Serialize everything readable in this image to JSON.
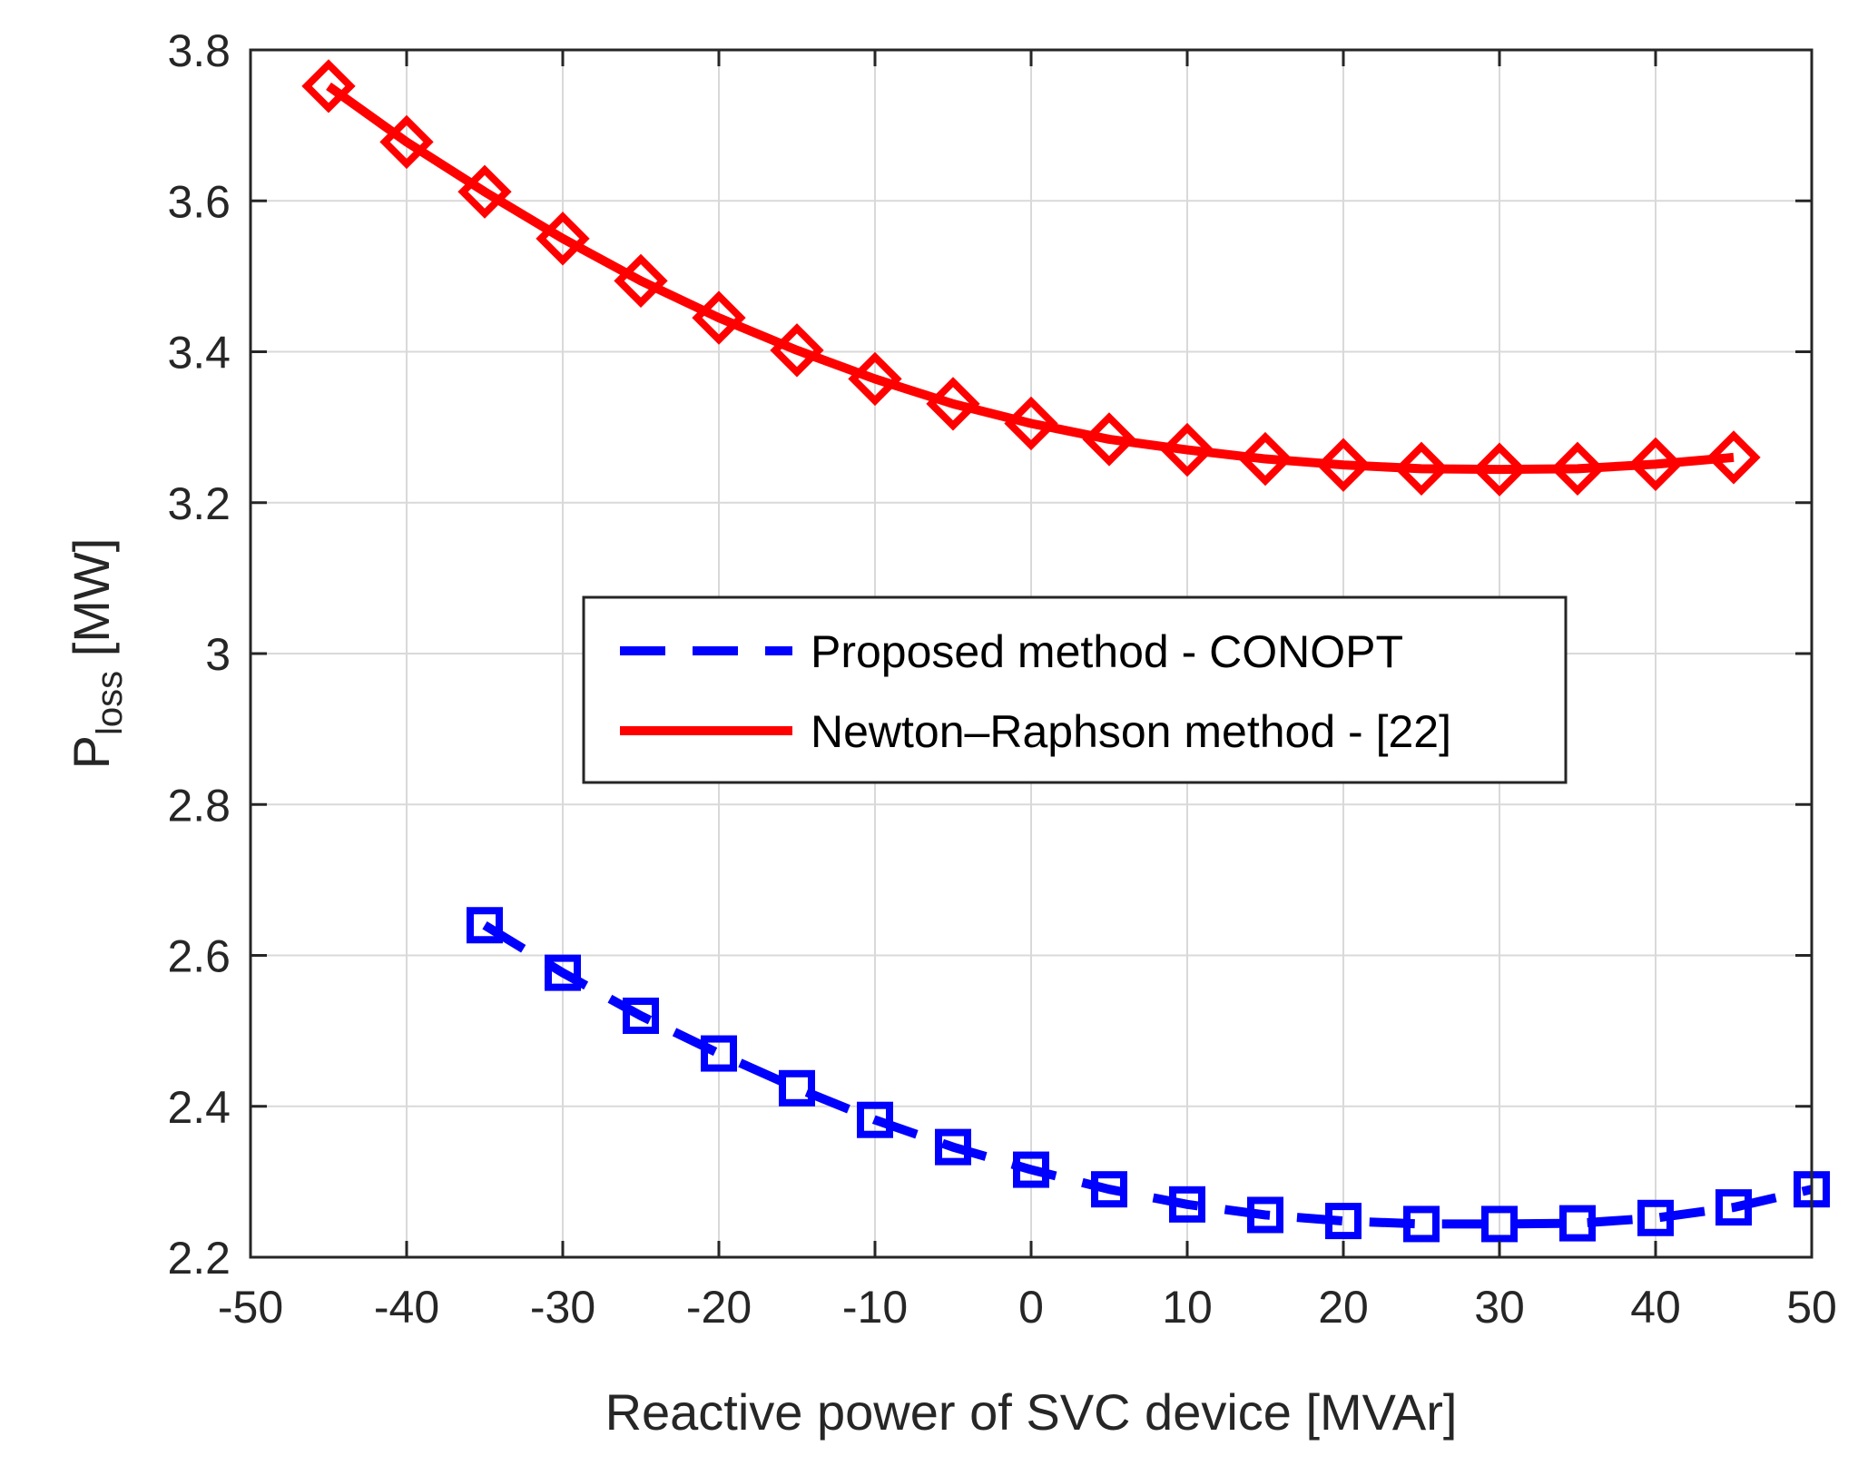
{
  "chart_data": {
    "type": "line",
    "title": "",
    "xlabel": "Reactive power of SVC device [MVAr]",
    "ylabel": {
      "main": "P",
      "subscript": "loss",
      "suffix": " [MW]"
    },
    "xlim": [
      -50,
      50
    ],
    "ylim": [
      2.2,
      3.8
    ],
    "xticks": [
      -50,
      -40,
      -30,
      -20,
      -10,
      0,
      10,
      20,
      30,
      40,
      50
    ],
    "yticks": [
      2.2,
      2.4,
      2.6,
      2.8,
      3.0,
      3.2,
      3.4,
      3.6,
      3.8
    ],
    "xtick_labels": [
      "-50",
      "-40",
      "-30",
      "-20",
      "-10",
      "0",
      "10",
      "20",
      "30",
      "40",
      "50"
    ],
    "ytick_labels": [
      "2.2",
      "2.4",
      "2.6",
      "2.8",
      "3",
      "3.2",
      "3.4",
      "3.6",
      "3.8"
    ],
    "grid": true,
    "legend_position": "center",
    "series": [
      {
        "name": "Proposed method - CONOPT",
        "color": "#0000ff",
        "line_style": "dashed",
        "marker": "square",
        "x": [
          -35,
          -30,
          -25,
          -20,
          -15,
          -10,
          -5,
          0,
          5,
          10,
          15,
          20,
          25,
          30,
          35,
          40,
          45,
          50
        ],
        "values": [
          2.64,
          2.577,
          2.52,
          2.47,
          2.424,
          2.382,
          2.346,
          2.316,
          2.29,
          2.27,
          2.256,
          2.248,
          2.244,
          2.244,
          2.245,
          2.252,
          2.266,
          2.29
        ]
      },
      {
        "name": "Newton–Raphson method - [22]",
        "color": "#ff0000",
        "line_style": "solid",
        "marker": "diamond",
        "x": [
          -45,
          -40,
          -35,
          -30,
          -25,
          -20,
          -15,
          -10,
          -5,
          0,
          5,
          10,
          15,
          20,
          25,
          30,
          35,
          40,
          45
        ],
        "values": [
          3.752,
          3.678,
          3.612,
          3.55,
          3.494,
          3.445,
          3.402,
          3.364,
          3.331,
          3.305,
          3.284,
          3.27,
          3.258,
          3.25,
          3.245,
          3.244,
          3.245,
          3.251,
          3.26
        ]
      }
    ]
  }
}
